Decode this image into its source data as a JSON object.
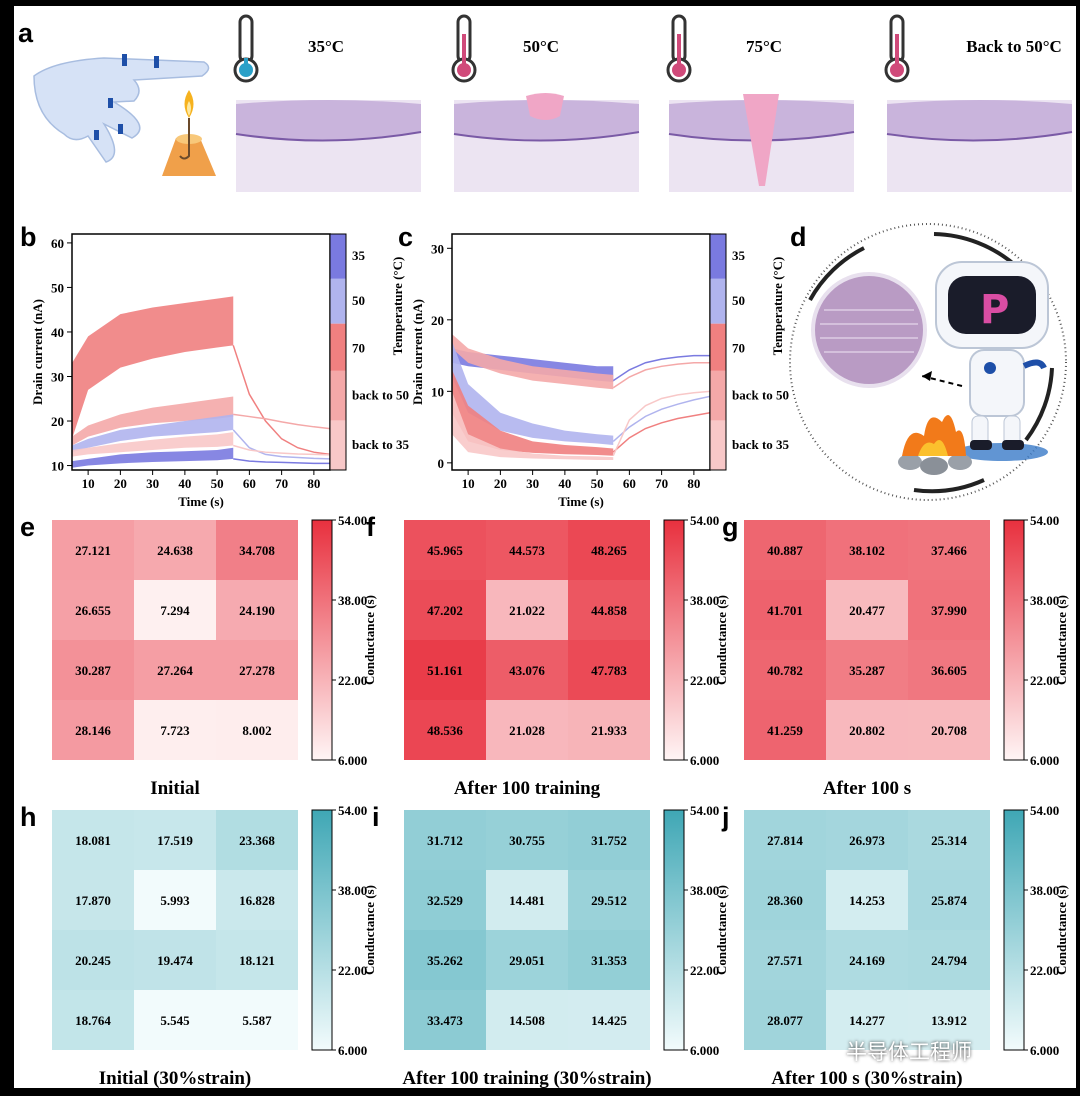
{
  "panel_labels": {
    "a": "a",
    "b": "b",
    "c": "c",
    "d": "d",
    "e": "e",
    "f": "f",
    "g": "g",
    "h": "h",
    "i": "i",
    "j": "j"
  },
  "panel_a": {
    "temps": [
      "35°C",
      "50°C",
      "75°C",
      "Back to 50°C"
    ],
    "therm_colors": [
      "#2aa0c8",
      "#d04a7a",
      "#d04a7a",
      "#d04a7a"
    ]
  },
  "chart_data": [
    {
      "id": "b",
      "type": "area",
      "xlabel": "Time (s)",
      "ylabel": "Drain current (nA)",
      "xlim": [
        5,
        85
      ],
      "ylim": [
        9,
        62
      ],
      "xticks": [
        10,
        20,
        30,
        40,
        50,
        60,
        70,
        80
      ],
      "yticks": [
        10,
        20,
        30,
        40,
        50,
        60
      ],
      "colorbar": {
        "label": "Temperature (°C)",
        "ticks": [
          "35",
          "50",
          "70",
          "back to 50",
          "back to 35"
        ],
        "segments": [
          {
            "c": "#7a7ae0",
            "f": [
              0,
              0.19
            ]
          },
          {
            "c": "#b0b4ee",
            "f": [
              0.19,
              0.38
            ]
          },
          {
            "c": "#f08080",
            "f": [
              0.38,
              0.58
            ]
          },
          {
            "c": "#f4a8a8",
            "f": [
              0.58,
              0.79
            ]
          },
          {
            "c": "#f8c8c8",
            "f": [
              0.79,
              1
            ]
          }
        ]
      },
      "series": [
        {
          "color": "#f08080",
          "x": [
            5,
            10,
            20,
            30,
            40,
            50,
            55
          ],
          "low": [
            16,
            27,
            32,
            34,
            35.5,
            36.5,
            37
          ],
          "high": [
            33,
            39,
            44,
            45.5,
            46.5,
            47.5,
            48
          ],
          "decay": [
            37,
            26,
            20,
            16,
            14,
            13,
            12.5
          ]
        },
        {
          "color": "#f4a8a8",
          "x": [
            5,
            10,
            20,
            30,
            40,
            50,
            55
          ],
          "low": [
            14.5,
            16.5,
            18.5,
            19.5,
            20,
            20.5,
            21
          ],
          "high": [
            16.5,
            19,
            21.5,
            23,
            24,
            25,
            25.5
          ],
          "decay": [
            21.5,
            21,
            20.5,
            19.8,
            19.2,
            18.7,
            18.3
          ]
        },
        {
          "color": "#b0b4ee",
          "x": [
            5,
            10,
            20,
            30,
            40,
            50,
            55
          ],
          "low": [
            13,
            14,
            15.5,
            16.5,
            17,
            17.5,
            18
          ],
          "high": [
            14.5,
            16,
            18,
            19,
            20,
            21,
            21.5
          ],
          "decay": [
            18,
            14,
            12.5,
            12,
            11.8,
            11.6,
            11.5
          ]
        },
        {
          "color": "#f8c8c8",
          "x": [
            5,
            10,
            20,
            30,
            40,
            50,
            55
          ],
          "low": [
            12,
            12.5,
            13,
            13.5,
            14,
            14.2,
            14.5
          ],
          "high": [
            13.5,
            14,
            15,
            15.8,
            16.5,
            17,
            17.5
          ],
          "decay": [
            14.5,
            13.5,
            13,
            12.8,
            12.6,
            12.5,
            12.4
          ]
        },
        {
          "color": "#7a7ae0",
          "x": [
            5,
            10,
            20,
            30,
            40,
            50,
            55
          ],
          "low": [
            9.5,
            10,
            10.5,
            10.8,
            11,
            11.2,
            11.5
          ],
          "high": [
            11,
            11.5,
            12.5,
            13,
            13.2,
            13.5,
            14
          ],
          "decay": [
            11.5,
            11,
            10.8,
            10.7,
            10.6,
            10.5,
            10.5
          ]
        }
      ]
    },
    {
      "id": "c",
      "type": "area",
      "xlabel": "Time (s)",
      "ylabel": "Drain current (nA)",
      "xlim": [
        5,
        85
      ],
      "ylim": [
        -1,
        32
      ],
      "xticks": [
        10,
        20,
        30,
        40,
        50,
        60,
        70,
        80
      ],
      "yticks": [
        0,
        10,
        20,
        30
      ],
      "colorbar": {
        "label": "Temperature (°C)",
        "ticks": [
          "35",
          "50",
          "70",
          "back to 50",
          "back to 35"
        ],
        "segments": [
          {
            "c": "#7a7ae0",
            "f": [
              0,
              0.19
            ]
          },
          {
            "c": "#b0b4ee",
            "f": [
              0.19,
              0.38
            ]
          },
          {
            "c": "#f08080",
            "f": [
              0.38,
              0.58
            ]
          },
          {
            "c": "#f4a8a8",
            "f": [
              0.58,
              0.79
            ]
          },
          {
            "c": "#f8c8c8",
            "f": [
              0.79,
              1
            ]
          }
        ]
      },
      "series": [
        {
          "color": "#7a7ae0",
          "x": [
            5,
            10,
            20,
            30,
            40,
            50,
            55
          ],
          "low": [
            14,
            13.5,
            13,
            12.5,
            12,
            11.5,
            11.3
          ],
          "high": [
            16,
            15.5,
            15,
            14.5,
            14,
            13.5,
            13.5
          ],
          "decay": [
            11.5,
            13,
            14,
            14.5,
            14.8,
            15,
            15
          ]
        },
        {
          "color": "#f4a8a8",
          "x": [
            5,
            10,
            20,
            30,
            40,
            50,
            55
          ],
          "low": [
            16,
            14,
            12.5,
            11.5,
            11,
            10.5,
            10.3
          ],
          "high": [
            18,
            16,
            14.5,
            13.5,
            13,
            12.5,
            12.3
          ],
          "decay": [
            10.5,
            12,
            13,
            13.5,
            13.8,
            14,
            14
          ]
        },
        {
          "color": "#b0b4ee",
          "x": [
            5,
            10,
            20,
            30,
            40,
            50,
            55
          ],
          "low": [
            12,
            7,
            4.5,
            3.5,
            3,
            2.7,
            2.5
          ],
          "high": [
            17,
            11,
            7,
            5.5,
            4.5,
            4,
            3.8
          ],
          "decay": [
            3,
            5,
            6.5,
            7.5,
            8.2,
            8.8,
            9.3
          ]
        },
        {
          "color": "#f08080",
          "x": [
            5,
            10,
            20,
            30,
            40,
            50,
            55
          ],
          "low": [
            7,
            3,
            1.8,
            1.4,
            1.2,
            1.1,
            1
          ],
          "high": [
            13,
            8,
            4.5,
            3,
            2.5,
            2.2,
            2
          ],
          "decay": [
            1.5,
            3.5,
            4.8,
            5.6,
            6.2,
            6.6,
            7
          ]
        },
        {
          "color": "#f8c8c8",
          "x": [
            5,
            10,
            20,
            30,
            40,
            50,
            55
          ],
          "low": [
            4,
            1.5,
            0.8,
            0.6,
            0.5,
            0.4,
            0.4
          ],
          "high": [
            10,
            4,
            2,
            1.3,
            1,
            0.9,
            0.8
          ],
          "decay": [
            1,
            6,
            8,
            9,
            9.5,
            9.8,
            10
          ]
        }
      ]
    },
    {
      "id": "e",
      "type": "heatmap",
      "caption": "Initial",
      "values": [
        [
          27.121,
          24.638,
          34.708
        ],
        [
          26.655,
          7.294,
          24.19
        ],
        [
          30.287,
          27.264,
          27.278
        ],
        [
          28.146,
          7.723,
          8.002
        ]
      ],
      "labels": [
        [
          "27.121",
          "24.638",
          "34.708"
        ],
        [
          "26.655",
          "7.294",
          "24.190"
        ],
        [
          "30.287",
          "27.264",
          "27.278"
        ],
        [
          "28.146",
          "7.723",
          "8.002"
        ]
      ],
      "vmin": 6,
      "vmax": 54,
      "cmap": "red",
      "colorbar_label": "Conductance (s)",
      "colorbar_ticks": [
        "54.00",
        "38.00",
        "22.00",
        "6.000"
      ]
    },
    {
      "id": "f",
      "type": "heatmap",
      "caption": "After 100 training",
      "values": [
        [
          45.965,
          44.573,
          48.265
        ],
        [
          47.202,
          21.022,
          44.858
        ],
        [
          51.161,
          43.076,
          47.783
        ],
        [
          48.536,
          21.028,
          21.933
        ]
      ],
      "labels": [
        [
          "45.965",
          "44.573",
          "48.265"
        ],
        [
          "47.202",
          "21.022",
          "44.858"
        ],
        [
          "51.161",
          "43.076",
          "47.783"
        ],
        [
          "48.536",
          "21.028",
          "21.933"
        ]
      ],
      "vmin": 6,
      "vmax": 54,
      "cmap": "red",
      "colorbar_label": "Conductance (s)",
      "colorbar_ticks": [
        "54.00",
        "38.00",
        "22.00",
        "6.000"
      ]
    },
    {
      "id": "g",
      "type": "heatmap",
      "caption": "After 100 s",
      "values": [
        [
          40.887,
          38.102,
          37.466
        ],
        [
          41.701,
          20.477,
          37.99
        ],
        [
          40.782,
          35.287,
          36.605
        ],
        [
          41.259,
          20.802,
          20.708
        ]
      ],
      "labels": [
        [
          "40.887",
          "38.102",
          "37.466"
        ],
        [
          "41.701",
          "20.477",
          "37.990"
        ],
        [
          "40.782",
          "35.287",
          "36.605"
        ],
        [
          "41.259",
          "20.802",
          "20.708"
        ]
      ],
      "vmin": 6,
      "vmax": 54,
      "cmap": "red",
      "colorbar_label": "Conductance (s)",
      "colorbar_ticks": [
        "54.00",
        "38.00",
        "22.00",
        "6.000"
      ]
    },
    {
      "id": "h",
      "type": "heatmap",
      "caption": "Initial (30%strain)",
      "values": [
        [
          18.081,
          17.519,
          23.368
        ],
        [
          17.87,
          5.993,
          16.828
        ],
        [
          20.245,
          19.474,
          18.121
        ],
        [
          18.764,
          5.545,
          5.587
        ]
      ],
      "labels": [
        [
          "18.081",
          "17.519",
          "23.368"
        ],
        [
          "17.870",
          "5.993",
          "16.828"
        ],
        [
          "20.245",
          "19.474",
          "18.121"
        ],
        [
          "18.764",
          "5.545",
          "5.587"
        ]
      ],
      "vmin": 6,
      "vmax": 54,
      "cmap": "teal",
      "colorbar_label": "Conductance (s)",
      "colorbar_ticks": [
        "54.00",
        "38.00",
        "22.00",
        "6.000"
      ]
    },
    {
      "id": "i",
      "type": "heatmap",
      "caption": "After 100 training (30%strain)",
      "values": [
        [
          31.712,
          30.755,
          31.752
        ],
        [
          32.529,
          14.481,
          29.512
        ],
        [
          35.262,
          29.051,
          31.353
        ],
        [
          33.473,
          14.508,
          14.425
        ]
      ],
      "labels": [
        [
          "31.712",
          "30.755",
          "31.752"
        ],
        [
          "32.529",
          "14.481",
          "29.512"
        ],
        [
          "35.262",
          "29.051",
          "31.353"
        ],
        [
          "33.473",
          "14.508",
          "14.425"
        ]
      ],
      "vmin": 6,
      "vmax": 54,
      "cmap": "teal",
      "colorbar_label": "Conductance (s)",
      "colorbar_ticks": [
        "54.00",
        "38.00",
        "22.00",
        "6.000"
      ]
    },
    {
      "id": "j",
      "type": "heatmap",
      "caption": "After 100 s (30%strain)",
      "values": [
        [
          27.814,
          26.973,
          25.314
        ],
        [
          28.36,
          14.253,
          25.874
        ],
        [
          27.571,
          24.169,
          24.794
        ],
        [
          28.077,
          14.277,
          13.912
        ]
      ],
      "labels": [
        [
          "27.814",
          "26.973",
          "25.314"
        ],
        [
          "28.360",
          "14.253",
          "25.874"
        ],
        [
          "27.571",
          "24.169",
          "24.794"
        ],
        [
          "28.077",
          "14.277",
          "13.912"
        ]
      ],
      "vmin": 6,
      "vmax": 54,
      "cmap": "teal",
      "colorbar_label": "Conductance (s)",
      "colorbar_ticks": [
        "54.00",
        "38.00",
        "22.00",
        "6.000"
      ]
    }
  ],
  "watermark": "半导体工程师",
  "colors": {
    "red_hi": "#e8303e",
    "red_lo": "#fff5f5",
    "teal_hi": "#3fa7b5",
    "teal_lo": "#f2fbfc"
  }
}
